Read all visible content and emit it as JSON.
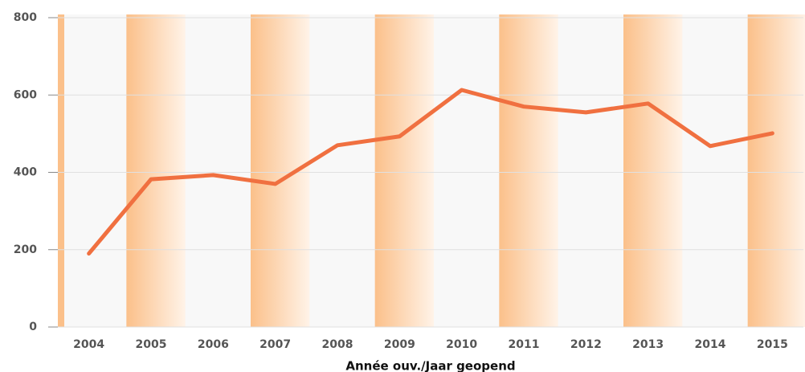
{
  "chart_data": {
    "type": "line",
    "x_label": "Année ouv./Jaar geopend",
    "categories": [
      "2004",
      "2005",
      "2006",
      "2007",
      "2008",
      "2009",
      "2010",
      "2011",
      "2012",
      "2013",
      "2014",
      "2015"
    ],
    "series": [
      {
        "color": "#f07040",
        "values": [
          190,
          382,
          393,
          370,
          470,
          493,
          613,
          570,
          555,
          578,
          468,
          501
        ]
      }
    ],
    "ylim": [
      0,
      800
    ],
    "yticks": [
      0,
      200,
      400,
      600,
      800
    ],
    "grid": true
  }
}
